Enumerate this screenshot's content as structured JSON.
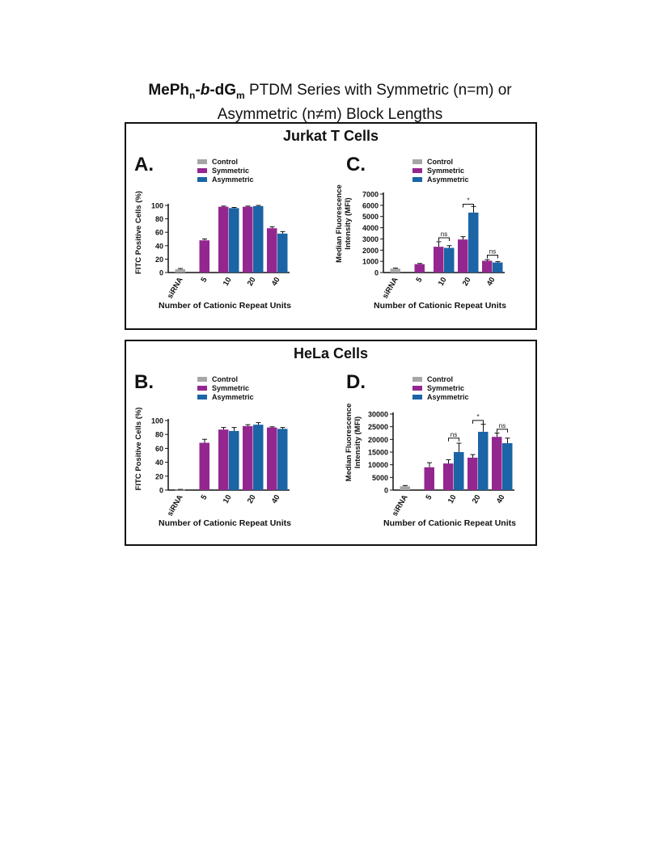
{
  "figure": {
    "title_prefix_1": "MePh",
    "title_sub_1": "n",
    "title_prefix_2": "-",
    "title_italic_b": "b",
    "title_prefix_3": "-dG",
    "title_sub_2": "m",
    "title_rest_line1": " PTDM Series with Symmetric (n=m) or",
    "title_line2": "Asymmetric (n≠m) Block Lengths"
  },
  "panels": [
    {
      "title": "Jurkat T Cells"
    },
    {
      "title": "HeLa Cells"
    }
  ],
  "colors": {
    "control": "#a6a6a6",
    "symmetric": "#93278f",
    "asymmetric": "#1b64a6"
  },
  "chart_data": [
    {
      "letter": "A.",
      "type": "bar",
      "cell_line": "Jurkat T Cells",
      "categories": [
        "siRNA",
        "5",
        "10",
        "20",
        "40"
      ],
      "legend": [
        "Control",
        "Symmetric",
        "Asymmetric"
      ],
      "series": [
        {
          "name": "Control",
          "values": [
            5,
            null,
            null,
            null,
            null
          ],
          "errors": [
            1,
            null,
            null,
            null,
            null
          ]
        },
        {
          "name": "Symmetric",
          "values": [
            null,
            48,
            98,
            98,
            66
          ],
          "errors": [
            null,
            2,
            1,
            1,
            2
          ]
        },
        {
          "name": "Asymmetric",
          "values": [
            null,
            null,
            96,
            99,
            58
          ],
          "errors": [
            null,
            null,
            1,
            1,
            3
          ]
        }
      ],
      "ylabel": "FITC Positive Cells (%)",
      "xlabel": "Number of Cationic Repeat Units",
      "ylim": [
        0,
        100
      ],
      "yticks": [
        "0",
        "20",
        "40",
        "60",
        "80",
        "100"
      ],
      "annotations": []
    },
    {
      "letter": "C.",
      "type": "bar",
      "cell_line": "Jurkat T Cells",
      "categories": [
        "siRNA",
        "5",
        "10",
        "20",
        "40"
      ],
      "legend": [
        "Control",
        "Symmetric",
        "Asymmetric"
      ],
      "series": [
        {
          "name": "Control",
          "values": [
            350,
            null,
            null,
            null,
            null
          ],
          "errors": [
            50,
            null,
            null,
            null,
            null
          ]
        },
        {
          "name": "Symmetric",
          "values": [
            null,
            750,
            2300,
            2950,
            1050
          ],
          "errors": [
            null,
            60,
            450,
            250,
            100
          ]
        },
        {
          "name": "Asymmetric",
          "values": [
            null,
            null,
            2200,
            5350,
            900
          ],
          "errors": [
            null,
            null,
            200,
            550,
            80
          ]
        }
      ],
      "ylabel": "Median Fluorescence Intensity (MFI)",
      "xlabel": "Number of Cationic Repeat Units",
      "ylim": [
        0,
        7000
      ],
      "yticks": [
        "0",
        "1000",
        "2000",
        "3000",
        "4000",
        "5000",
        "6000",
        "7000"
      ],
      "annotations": [
        {
          "category": "10",
          "text": "ns",
          "value": 3100
        },
        {
          "category": "20",
          "text": "*",
          "value": 6100
        },
        {
          "category": "40",
          "text": "ns",
          "value": 1550
        }
      ]
    },
    {
      "letter": "B.",
      "type": "bar",
      "cell_line": "HeLa Cells",
      "categories": [
        "siRNA",
        "5",
        "10",
        "20",
        "40"
      ],
      "legend": [
        "Control",
        "Symmetric",
        "Asymmetric"
      ],
      "series": [
        {
          "name": "Control",
          "values": [
            0.5,
            null,
            null,
            null,
            null
          ],
          "errors": [
            0.5,
            null,
            null,
            null,
            null
          ]
        },
        {
          "name": "Symmetric",
          "values": [
            null,
            68,
            87,
            92,
            90
          ],
          "errors": [
            null,
            5,
            3,
            2,
            1
          ]
        },
        {
          "name": "Asymmetric",
          "values": [
            null,
            null,
            85,
            94,
            88
          ],
          "errors": [
            null,
            null,
            5,
            3,
            2
          ]
        }
      ],
      "ylabel": "FITC Positive Cells (%)",
      "xlabel": "Number of Cationic Repeat Units",
      "ylim": [
        0,
        100
      ],
      "yticks": [
        "0",
        "20",
        "40",
        "60",
        "80",
        "100"
      ],
      "annotations": []
    },
    {
      "letter": "D.",
      "type": "bar",
      "cell_line": "HeLa Cells",
      "categories": [
        "siRNA",
        "5",
        "10",
        "20",
        "40"
      ],
      "legend": [
        "Control",
        "Symmetric",
        "Asymmetric"
      ],
      "series": [
        {
          "name": "Control",
          "values": [
            1500,
            null,
            null,
            null,
            null
          ],
          "errors": [
            300,
            null,
            null,
            null,
            null
          ]
        },
        {
          "name": "Symmetric",
          "values": [
            null,
            9000,
            10500,
            12800,
            21000
          ],
          "errors": [
            null,
            1800,
            1500,
            1200,
            1500
          ]
        },
        {
          "name": "Asymmetric",
          "values": [
            null,
            null,
            15000,
            23000,
            18500
          ],
          "errors": [
            null,
            null,
            3500,
            3000,
            2000
          ]
        }
      ],
      "ylabel": "Median Fluorescence Intensity (MFI)",
      "xlabel": "Number of Cationic Repeat Units",
      "ylim": [
        0,
        30000
      ],
      "yticks": [
        "0",
        "5000",
        "10000",
        "15000",
        "20000",
        "25000",
        "30000"
      ],
      "annotations": [
        {
          "category": "10",
          "text": "ns",
          "value": 20500
        },
        {
          "category": "20",
          "text": "*",
          "value": 27500
        },
        {
          "category": "40",
          "text": "ns",
          "value": 24000
        }
      ]
    }
  ]
}
